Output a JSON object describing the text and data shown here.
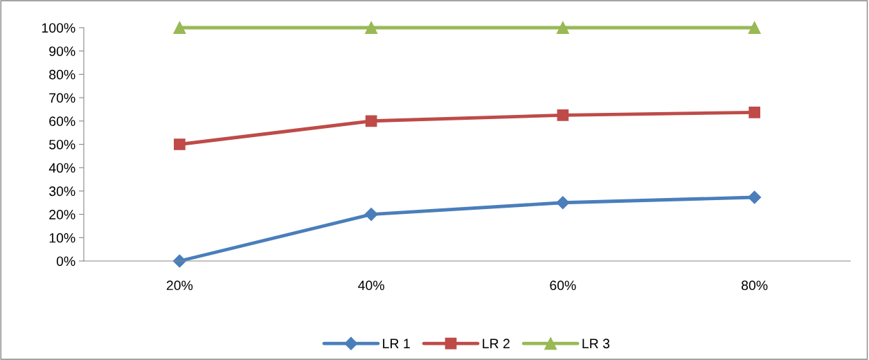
{
  "chart_data": {
    "type": "line",
    "categories": [
      "20%",
      "40%",
      "60%",
      "80%"
    ],
    "series": [
      {
        "name": "LR 1",
        "color": "#4a7ebb",
        "marker": "diamond",
        "values": [
          0,
          20,
          25,
          27.3
        ]
      },
      {
        "name": "LR 2",
        "color": "#be4b48",
        "marker": "square",
        "values": [
          50,
          60,
          62.5,
          63.7
        ]
      },
      {
        "name": "LR 3",
        "color": "#98b954",
        "marker": "triangle",
        "values": [
          100,
          100,
          100,
          100
        ]
      }
    ],
    "ylim": [
      0,
      100
    ],
    "yticks": [
      {
        "value": 0,
        "label": "0%"
      },
      {
        "value": 10,
        "label": "10%"
      },
      {
        "value": 20,
        "label": "20%"
      },
      {
        "value": 30,
        "label": "30%"
      },
      {
        "value": 40,
        "label": "40%"
      },
      {
        "value": 50,
        "label": "50%"
      },
      {
        "value": 60,
        "label": "60%"
      },
      {
        "value": 70,
        "label": "70%"
      },
      {
        "value": 80,
        "label": "80%"
      },
      {
        "value": 90,
        "label": "90%"
      },
      {
        "value": 100,
        "label": "100%"
      }
    ],
    "grid": false,
    "legend": "bottom",
    "line_style": "solid"
  }
}
